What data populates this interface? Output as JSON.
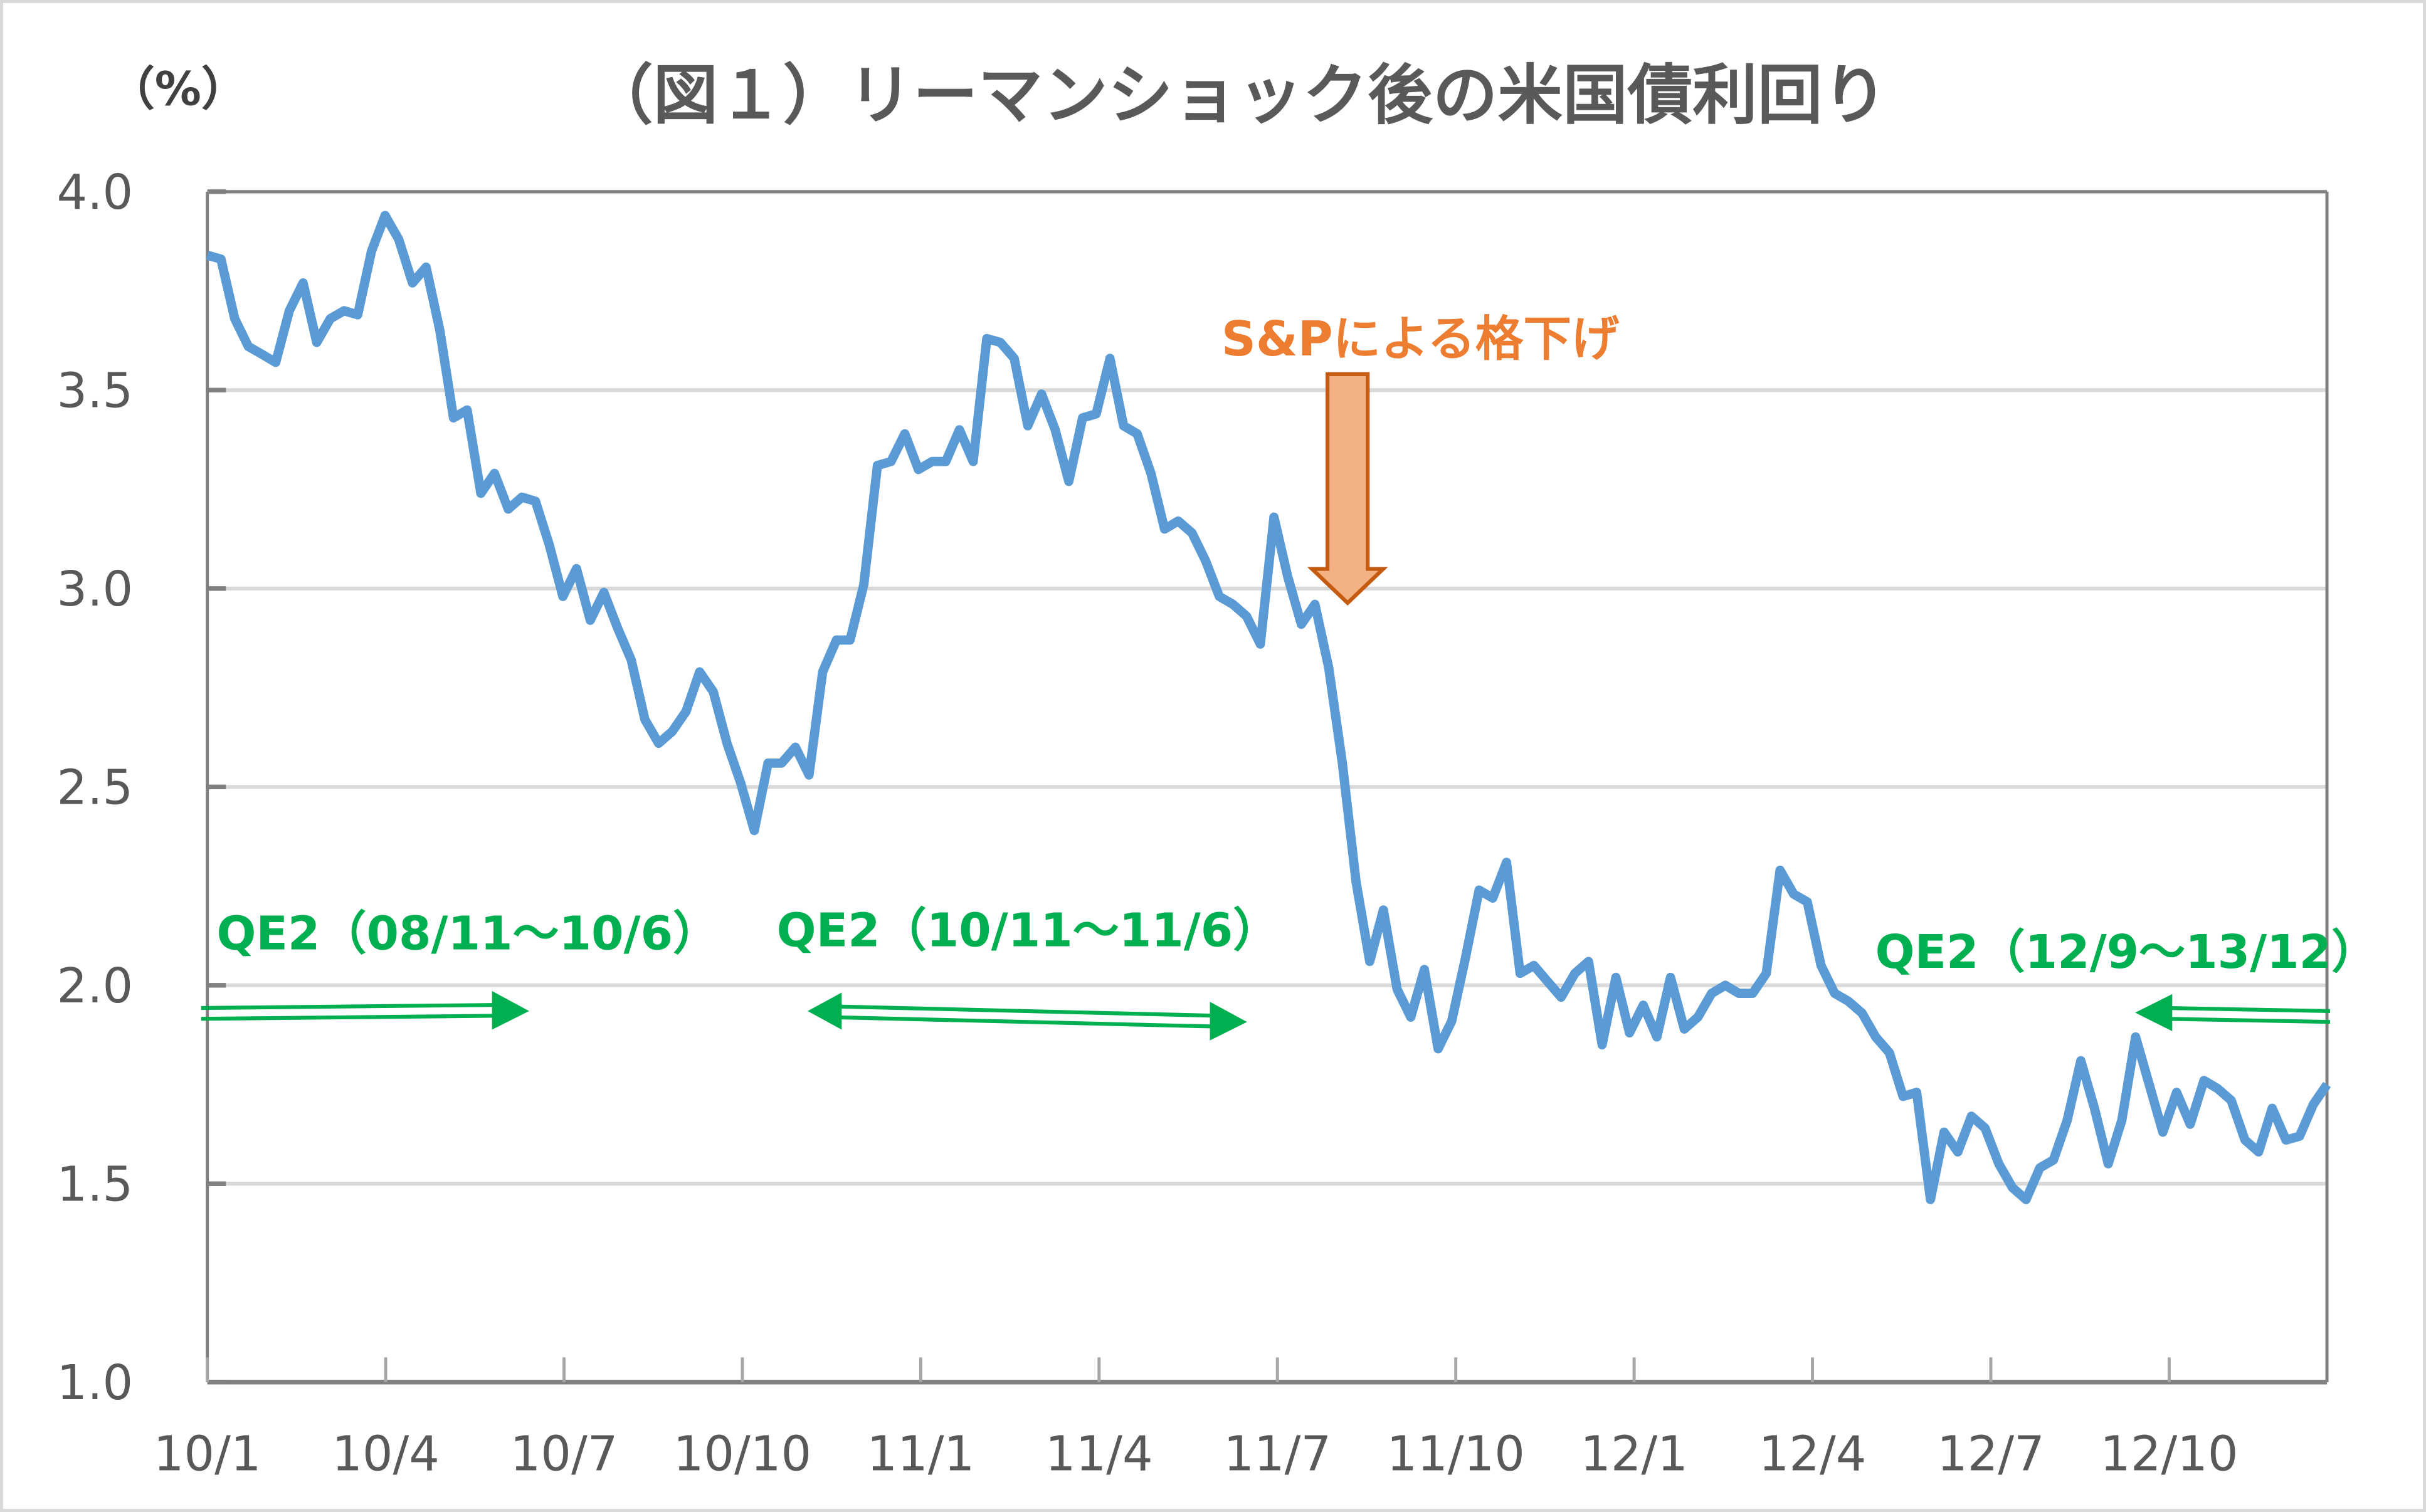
{
  "chart_data": {
    "type": "line",
    "title": "（図１）リーマンショック後の米国債利回り",
    "ylabel": "（%）",
    "xlabel": "",
    "ylim": [
      1.0,
      4.0
    ],
    "yticks": [
      "1.0",
      "1.5",
      "2.0",
      "2.5",
      "3.0",
      "3.5",
      "4.0"
    ],
    "xticks": [
      "10/1",
      "10/4",
      "10/7",
      "10/10",
      "11/1",
      "11/4",
      "11/7",
      "11/10",
      "12/1",
      "12/4",
      "12/7",
      "12/10"
    ],
    "x_range": [
      "10/1",
      "12/12"
    ],
    "frequency": "weekly",
    "grid": "horizontal",
    "line_color": "#5B9BD5",
    "values": [
      3.84,
      3.83,
      3.68,
      3.61,
      3.59,
      3.57,
      3.7,
      3.77,
      3.62,
      3.68,
      3.7,
      3.69,
      3.85,
      3.94,
      3.88,
      3.77,
      3.81,
      3.65,
      3.43,
      3.45,
      3.24,
      3.29,
      3.2,
      3.23,
      3.22,
      3.11,
      2.98,
      3.05,
      2.92,
      2.99,
      2.9,
      2.82,
      2.67,
      2.61,
      2.64,
      2.69,
      2.79,
      2.74,
      2.61,
      2.51,
      2.39,
      2.56,
      2.56,
      2.6,
      2.53,
      2.79,
      2.87,
      2.87,
      3.01,
      3.31,
      3.32,
      3.39,
      3.3,
      3.32,
      3.32,
      3.4,
      3.32,
      3.63,
      3.62,
      3.58,
      3.41,
      3.49,
      3.4,
      3.27,
      3.43,
      3.44,
      3.58,
      3.41,
      3.39,
      3.29,
      3.15,
      3.17,
      3.14,
      3.07,
      2.98,
      2.96,
      2.93,
      2.86,
      3.18,
      3.03,
      2.91,
      2.96,
      2.8,
      2.56,
      2.26,
      2.06,
      2.19,
      1.99,
      1.92,
      2.04,
      1.84,
      1.91,
      2.07,
      2.24,
      2.22,
      2.31,
      2.03,
      2.05,
      2.01,
      1.97,
      2.03,
      2.06,
      1.85,
      2.02,
      1.88,
      1.95,
      1.87,
      2.02,
      1.89,
      1.92,
      1.98,
      2.0,
      1.98,
      1.98,
      2.03,
      2.29,
      2.23,
      2.21,
      2.05,
      1.98,
      1.96,
      1.93,
      1.87,
      1.83,
      1.72,
      1.73,
      1.46,
      1.63,
      1.58,
      1.67,
      1.64,
      1.55,
      1.49,
      1.46,
      1.54,
      1.56,
      1.66,
      1.81,
      1.69,
      1.55,
      1.66,
      1.87,
      1.75,
      1.63,
      1.73,
      1.65,
      1.76,
      1.74,
      1.71,
      1.61,
      1.58,
      1.69,
      1.61,
      1.62,
      1.7,
      1.75
    ],
    "annotations": {
      "downgrade": {
        "text": "S&Pによる格下げ",
        "color": "#ED7D31",
        "arrow_fill": "#F4B183",
        "arrow_stroke": "#C55A11",
        "at": "11/8"
      },
      "qe": [
        {
          "text": "QE2（08/11～10/6）",
          "direction": "right"
        },
        {
          "text": "QE2（10/11～11/6）",
          "direction": "both"
        },
        {
          "text": "QE2（12/9～13/12）",
          "direction": "left"
        }
      ],
      "qe_color": "#00B050"
    }
  }
}
